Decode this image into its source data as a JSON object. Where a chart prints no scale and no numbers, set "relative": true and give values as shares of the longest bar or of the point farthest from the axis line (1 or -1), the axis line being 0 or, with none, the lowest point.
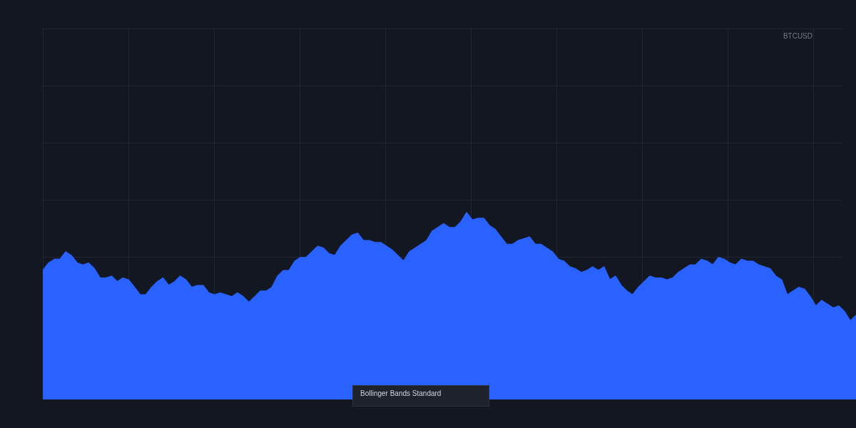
{
  "chart_data": {
    "type": "area",
    "title": "BTCUSD",
    "annotations": [
      "Bollinger Bands Standard"
    ],
    "categories": [
      null,
      null,
      null,
      null,
      null,
      null,
      null,
      null,
      null,
      null,
      null,
      null,
      null,
      null,
      null,
      null,
      null,
      null,
      null,
      null,
      null,
      null,
      null,
      null,
      null,
      null,
      null,
      null,
      null,
      null,
      null,
      null,
      null,
      null,
      null,
      null,
      null,
      null,
      null,
      null,
      null,
      null,
      null,
      null,
      null,
      null,
      null,
      null,
      null,
      null,
      null,
      null,
      null,
      null,
      null,
      null,
      null,
      null,
      null,
      null,
      null,
      null,
      null,
      null,
      null,
      null,
      null,
      null,
      null,
      null,
      null,
      null,
      null,
      null,
      null,
      null,
      null,
      null,
      null,
      null,
      null,
      null,
      null,
      null,
      null,
      null,
      null,
      null,
      null,
      null,
      null,
      null,
      null,
      null,
      null,
      null,
      null,
      null,
      null,
      null,
      null,
      null,
      null,
      null,
      null,
      null,
      null,
      null,
      null,
      null,
      null,
      null,
      null,
      null,
      null,
      null,
      null,
      null,
      null,
      null,
      null,
      null,
      null,
      null,
      null,
      null,
      null,
      null,
      null,
      null,
      null,
      null,
      null,
      null,
      null,
      null,
      null,
      null,
      null,
      null,
      null,
      null,
      null
    ],
    "values": [
      0.69,
      0.73,
      0.75,
      0.75,
      0.79,
      0.77,
      0.73,
      0.72,
      0.73,
      0.7,
      0.65,
      0.65,
      0.66,
      0.63,
      0.65,
      0.64,
      0.6,
      0.56,
      0.56,
      0.6,
      0.63,
      0.65,
      0.61,
      0.63,
      0.66,
      0.64,
      0.6,
      0.61,
      0.61,
      0.57,
      0.56,
      0.57,
      0.56,
      0.55,
      0.57,
      0.55,
      0.52,
      0.55,
      0.58,
      0.58,
      0.6,
      0.66,
      0.69,
      0.69,
      0.74,
      0.76,
      0.76,
      0.79,
      0.82,
      0.81,
      0.78,
      0.77,
      0.82,
      0.85,
      0.88,
      0.89,
      0.85,
      0.85,
      0.84,
      0.84,
      0.82,
      0.8,
      0.77,
      0.74,
      0.79,
      0.81,
      0.83,
      0.85,
      0.9,
      0.92,
      0.94,
      0.92,
      0.92,
      0.95,
      1.0,
      0.96,
      0.97,
      0.97,
      0.93,
      0.91,
      0.87,
      0.83,
      0.83,
      0.85,
      0.86,
      0.87,
      0.83,
      0.83,
      0.81,
      0.79,
      0.75,
      0.74,
      0.71,
      0.7,
      0.68,
      0.69,
      0.71,
      0.69,
      0.71,
      0.64,
      0.66,
      0.61,
      0.58,
      0.56,
      0.6,
      0.63,
      0.66,
      0.65,
      0.65,
      0.64,
      0.65,
      0.68,
      0.7,
      0.72,
      0.72,
      0.75,
      0.74,
      0.72,
      0.76,
      0.75,
      0.73,
      0.72,
      0.75,
      0.74,
      0.74,
      0.72,
      0.71,
      0.7,
      0.66,
      0.64,
      0.56,
      0.58,
      0.6,
      0.59,
      0.55,
      0.5,
      0.53,
      0.51,
      0.49,
      0.5,
      0.47,
      0.42,
      0.45
    ],
    "color": "#2962ff",
    "relative": true,
    "grid": true
  }
}
